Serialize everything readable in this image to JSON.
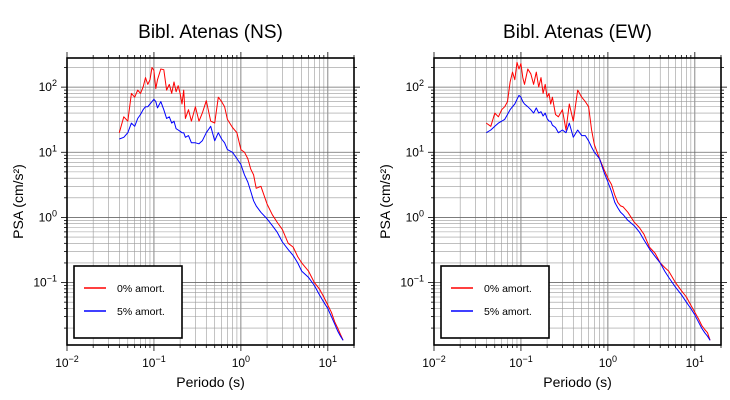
{
  "chart_data": [
    {
      "type": "line",
      "title": "Bibl. Atenas (NS)",
      "xlabel": "Periodo (s)",
      "ylabel": "PSA (cm/s²)",
      "xscale": "log",
      "yscale": "log",
      "xlim": [
        0.01,
        20
      ],
      "ylim": [
        0.011,
        280
      ],
      "xticks": [
        0.01,
        0.1,
        1,
        10
      ],
      "xtick_base": [
        "10",
        "10",
        "10",
        "10"
      ],
      "xtick_exp": [
        "−2",
        "−1",
        "0",
        "1"
      ],
      "yticks": [
        0.1,
        1,
        10,
        100
      ],
      "ytick_base": [
        "10",
        "10",
        "10",
        "10"
      ],
      "ytick_exp": [
        "−1",
        "0",
        "1",
        "2"
      ],
      "grid": true,
      "legend_position": "bottom-left",
      "series": [
        {
          "name": "0% amort.",
          "color": "#ff0000",
          "x": [
            0.04,
            0.045,
            0.05,
            0.055,
            0.06,
            0.065,
            0.07,
            0.075,
            0.08,
            0.085,
            0.09,
            0.095,
            0.1,
            0.105,
            0.11,
            0.12,
            0.13,
            0.14,
            0.15,
            0.16,
            0.17,
            0.18,
            0.19,
            0.2,
            0.21,
            0.22,
            0.23,
            0.25,
            0.27,
            0.3,
            0.33,
            0.36,
            0.4,
            0.45,
            0.5,
            0.55,
            0.6,
            0.65,
            0.7,
            0.8,
            0.9,
            1.0,
            1.1,
            1.2,
            1.3,
            1.4,
            1.5,
            1.7,
            2.0,
            2.3,
            2.6,
            3.0,
            3.5,
            4.0,
            4.5,
            5.0,
            6.0,
            7.0,
            8.0,
            9.0,
            10.0,
            11.0,
            12.0,
            13.0,
            14.0,
            15.0
          ],
          "y": [
            20,
            35,
            30,
            80,
            70,
            90,
            80,
            100,
            140,
            110,
            130,
            200,
            180,
            95,
            130,
            190,
            185,
            90,
            110,
            80,
            120,
            85,
            105,
            80,
            55,
            90,
            33,
            45,
            30,
            50,
            30,
            40,
            62,
            30,
            28,
            70,
            60,
            50,
            32,
            24,
            20,
            11,
            10,
            8,
            5.5,
            4.5,
            2.8,
            3.0,
            1.6,
            1.1,
            0.85,
            0.65,
            0.4,
            0.35,
            0.25,
            0.2,
            0.15,
            0.1,
            0.08,
            0.06,
            0.045,
            0.035,
            0.025,
            0.02,
            0.016,
            0.013
          ]
        },
        {
          "name": "5% amort.",
          "color": "#0000ff",
          "x": [
            0.04,
            0.045,
            0.05,
            0.055,
            0.06,
            0.065,
            0.07,
            0.075,
            0.08,
            0.085,
            0.09,
            0.095,
            0.1,
            0.105,
            0.11,
            0.12,
            0.13,
            0.14,
            0.15,
            0.16,
            0.17,
            0.18,
            0.19,
            0.2,
            0.21,
            0.22,
            0.23,
            0.25,
            0.27,
            0.3,
            0.33,
            0.36,
            0.4,
            0.45,
            0.5,
            0.55,
            0.6,
            0.65,
            0.7,
            0.8,
            0.9,
            1.0,
            1.1,
            1.2,
            1.3,
            1.4,
            1.5,
            1.7,
            2.0,
            2.3,
            2.6,
            3.0,
            3.5,
            4.0,
            4.5,
            5.0,
            6.0,
            7.0,
            8.0,
            9.0,
            10.0,
            11.0,
            12.0,
            13.0,
            14.0,
            15.0
          ],
          "y": [
            16,
            17,
            20,
            28,
            25,
            33,
            38,
            45,
            50,
            50,
            55,
            60,
            65,
            60,
            48,
            60,
            45,
            33,
            35,
            28,
            30,
            23,
            22,
            21,
            20,
            20,
            17,
            18,
            14,
            14,
            13.5,
            15,
            20,
            25,
            15,
            20,
            16,
            14,
            11,
            10,
            8,
            6.5,
            4.5,
            3.5,
            2.5,
            1.8,
            1.5,
            1.2,
            0.95,
            0.75,
            0.6,
            0.42,
            0.32,
            0.26,
            0.2,
            0.15,
            0.12,
            0.09,
            0.065,
            0.05,
            0.04,
            0.03,
            0.023,
            0.018,
            0.015,
            0.013
          ]
        }
      ]
    },
    {
      "type": "line",
      "title": "Bibl. Atenas (EW)",
      "xlabel": "Periodo (s)",
      "ylabel": "PSA (cm/s²)",
      "xscale": "log",
      "yscale": "log",
      "xlim": [
        0.01,
        20
      ],
      "ylim": [
        0.011,
        280
      ],
      "xticks": [
        0.01,
        0.1,
        1,
        10
      ],
      "xtick_base": [
        "10",
        "10",
        "10",
        "10"
      ],
      "xtick_exp": [
        "−2",
        "−1",
        "0",
        "1"
      ],
      "yticks": [
        0.1,
        1,
        10,
        100
      ],
      "ytick_base": [
        "10",
        "10",
        "10",
        "10"
      ],
      "ytick_exp": [
        "−1",
        "0",
        "1",
        "2"
      ],
      "grid": true,
      "legend_position": "bottom-left",
      "series": [
        {
          "name": "0% amort.",
          "color": "#ff0000",
          "x": [
            0.04,
            0.045,
            0.05,
            0.055,
            0.06,
            0.065,
            0.07,
            0.075,
            0.08,
            0.085,
            0.09,
            0.095,
            0.1,
            0.105,
            0.11,
            0.12,
            0.13,
            0.14,
            0.15,
            0.16,
            0.17,
            0.18,
            0.19,
            0.2,
            0.21,
            0.22,
            0.23,
            0.25,
            0.27,
            0.3,
            0.33,
            0.36,
            0.4,
            0.45,
            0.5,
            0.55,
            0.6,
            0.65,
            0.7,
            0.8,
            0.9,
            1.0,
            1.1,
            1.2,
            1.3,
            1.4,
            1.5,
            1.7,
            2.0,
            2.3,
            2.6,
            3.0,
            3.5,
            4.0,
            4.5,
            5.0,
            6.0,
            7.0,
            8.0,
            9.0,
            10.0,
            11.0,
            12.0,
            13.0,
            14.0,
            15.0
          ],
          "y": [
            28,
            25,
            40,
            35,
            45,
            50,
            60,
            120,
            170,
            130,
            240,
            190,
            230,
            140,
            110,
            190,
            160,
            110,
            170,
            100,
            140,
            80,
            110,
            70,
            80,
            55,
            70,
            38,
            35,
            45,
            22,
            55,
            30,
            90,
            70,
            60,
            50,
            22,
            13,
            8,
            5.5,
            4,
            3.2,
            2.2,
            1.7,
            1.5,
            1.45,
            1.2,
            0.85,
            0.7,
            0.55,
            0.35,
            0.28,
            0.2,
            0.17,
            0.15,
            0.1,
            0.075,
            0.06,
            0.045,
            0.035,
            0.028,
            0.022,
            0.019,
            0.017,
            0.013
          ]
        },
        {
          "name": "5% amort.",
          "color": "#0000ff",
          "x": [
            0.04,
            0.045,
            0.05,
            0.055,
            0.06,
            0.065,
            0.07,
            0.075,
            0.08,
            0.085,
            0.09,
            0.095,
            0.1,
            0.105,
            0.11,
            0.12,
            0.13,
            0.14,
            0.15,
            0.16,
            0.17,
            0.18,
            0.19,
            0.2,
            0.21,
            0.22,
            0.23,
            0.25,
            0.27,
            0.3,
            0.33,
            0.36,
            0.4,
            0.45,
            0.5,
            0.55,
            0.6,
            0.65,
            0.7,
            0.8,
            0.9,
            1.0,
            1.1,
            1.2,
            1.3,
            1.4,
            1.5,
            1.7,
            2.0,
            2.3,
            2.6,
            3.0,
            3.5,
            4.0,
            4.5,
            5.0,
            6.0,
            7.0,
            8.0,
            9.0,
            10.0,
            11.0,
            12.0,
            13.0,
            14.0,
            15.0
          ],
          "y": [
            20,
            22,
            25,
            28,
            30,
            32,
            38,
            45,
            50,
            55,
            65,
            75,
            70,
            60,
            55,
            50,
            45,
            40,
            48,
            40,
            42,
            36,
            40,
            33,
            30,
            30,
            26,
            24,
            20,
            22,
            20,
            28,
            17,
            22,
            18,
            18,
            15,
            12,
            10,
            8,
            5,
            3.5,
            2.5,
            1.7,
            1.4,
            1.2,
            1.1,
            0.9,
            0.75,
            0.6,
            0.45,
            0.33,
            0.25,
            0.2,
            0.15,
            0.12,
            0.085,
            0.065,
            0.05,
            0.04,
            0.032,
            0.025,
            0.02,
            0.017,
            0.015,
            0.013
          ]
        }
      ]
    }
  ]
}
